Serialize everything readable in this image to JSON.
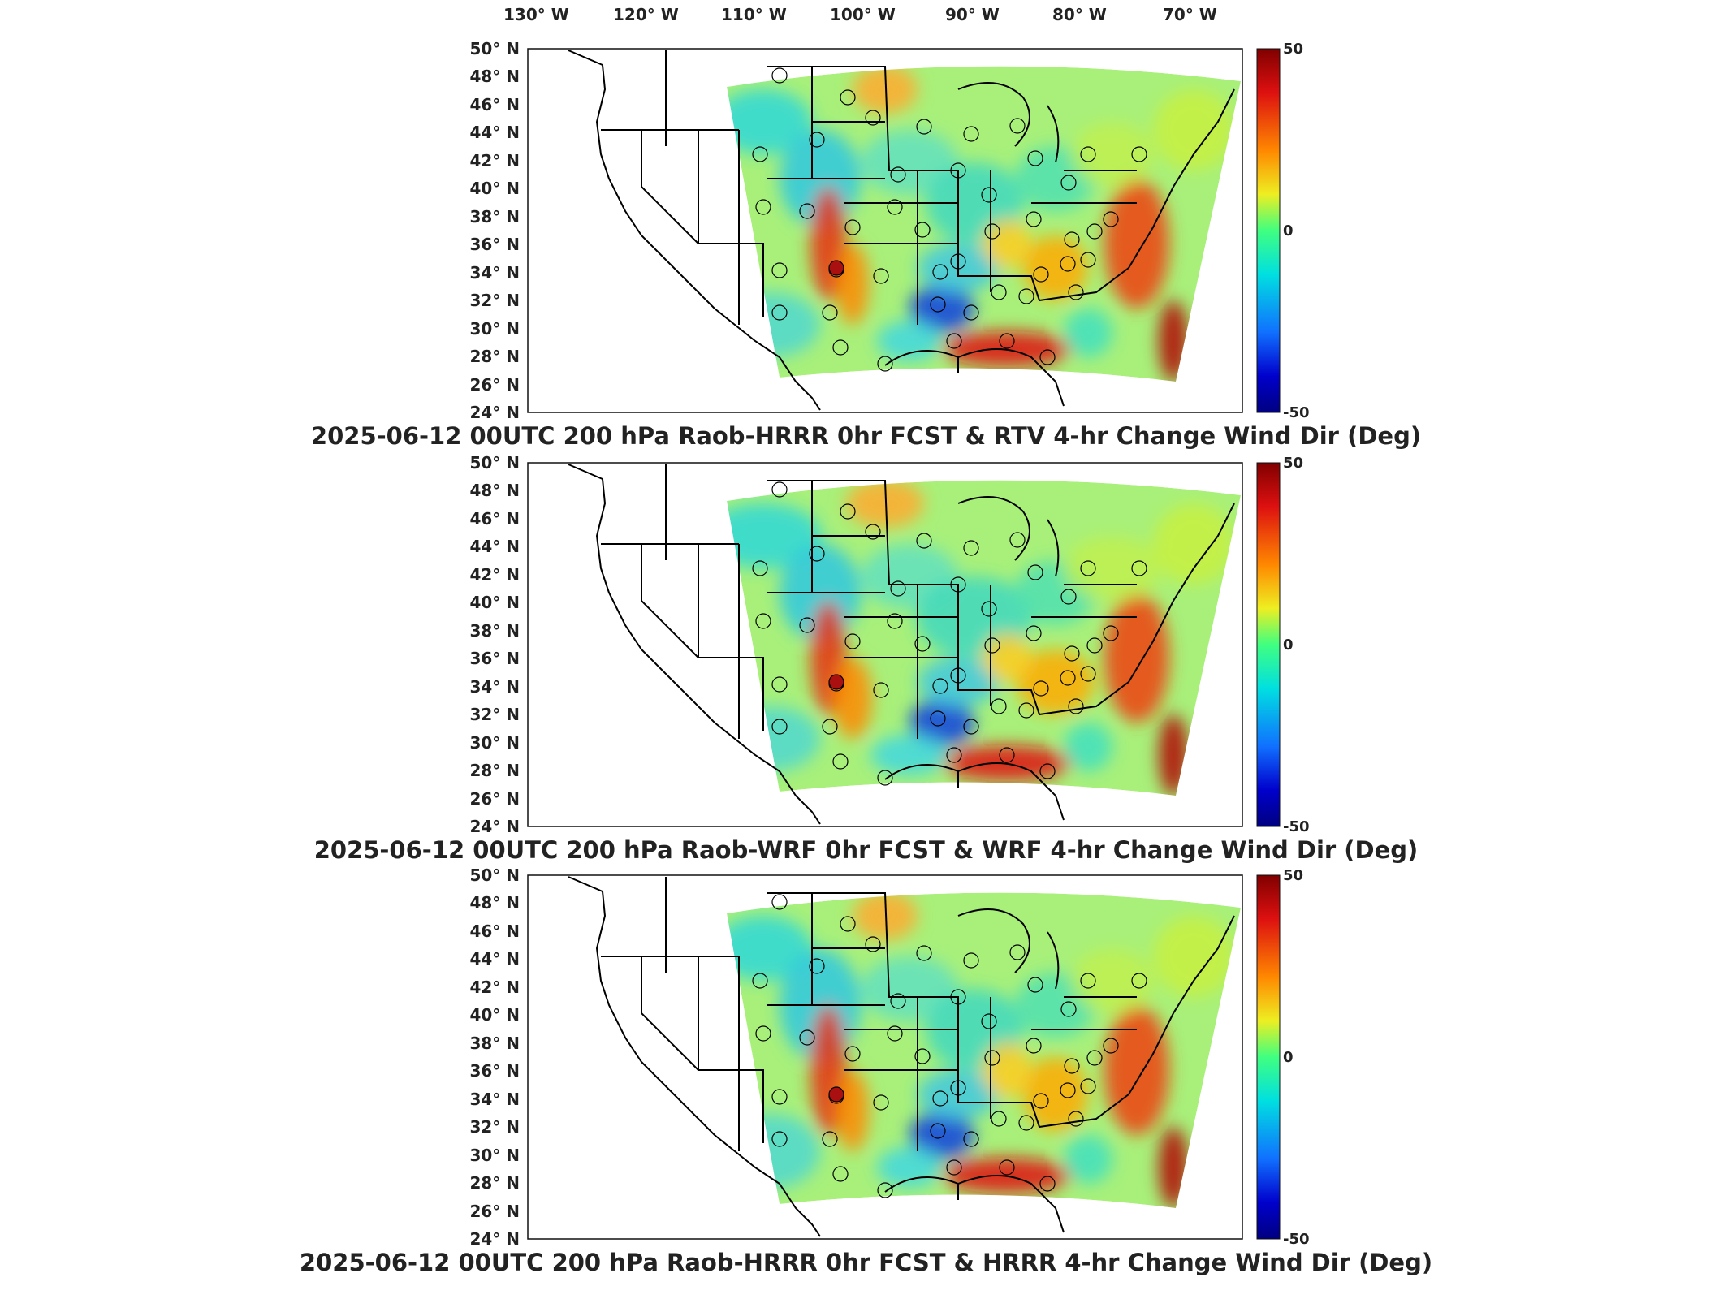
{
  "top_axis": {
    "longitude_labels": [
      "130° W",
      "120° W",
      "110° W",
      "100° W",
      "90° W",
      "80° W",
      "70° W"
    ]
  },
  "lat_labels": [
    "50° N",
    "48° N",
    "46° N",
    "44° N",
    "42° N",
    "40° N",
    "38° N",
    "36° N",
    "34° N",
    "32° N",
    "30° N",
    "28° N",
    "26° N",
    "24° N"
  ],
  "colorbar": {
    "max_label": "50",
    "mid_label": "0",
    "min_label": "-50",
    "min": -50,
    "max": 50
  },
  "panels": [
    {
      "title": "2025-06-12 00UTC 200 hPa Raob-HRRR 0hr FCST & RTV 4-hr Change Wind Dir (Deg)"
    },
    {
      "title": "2025-06-12 00UTC 200 hPa Raob-WRF 0hr FCST & WRF 4-hr Change Wind Dir (Deg)"
    },
    {
      "title": "2025-06-12 00UTC 200 hPa Raob-HRRR 0hr FCST & HRRR 4-hr Change Wind Dir (Deg)"
    }
  ],
  "colors": {
    "positive": "#cc1010",
    "zero": "#22dd66",
    "negative": "#1010aa",
    "background_field": "#a8f07a"
  }
}
